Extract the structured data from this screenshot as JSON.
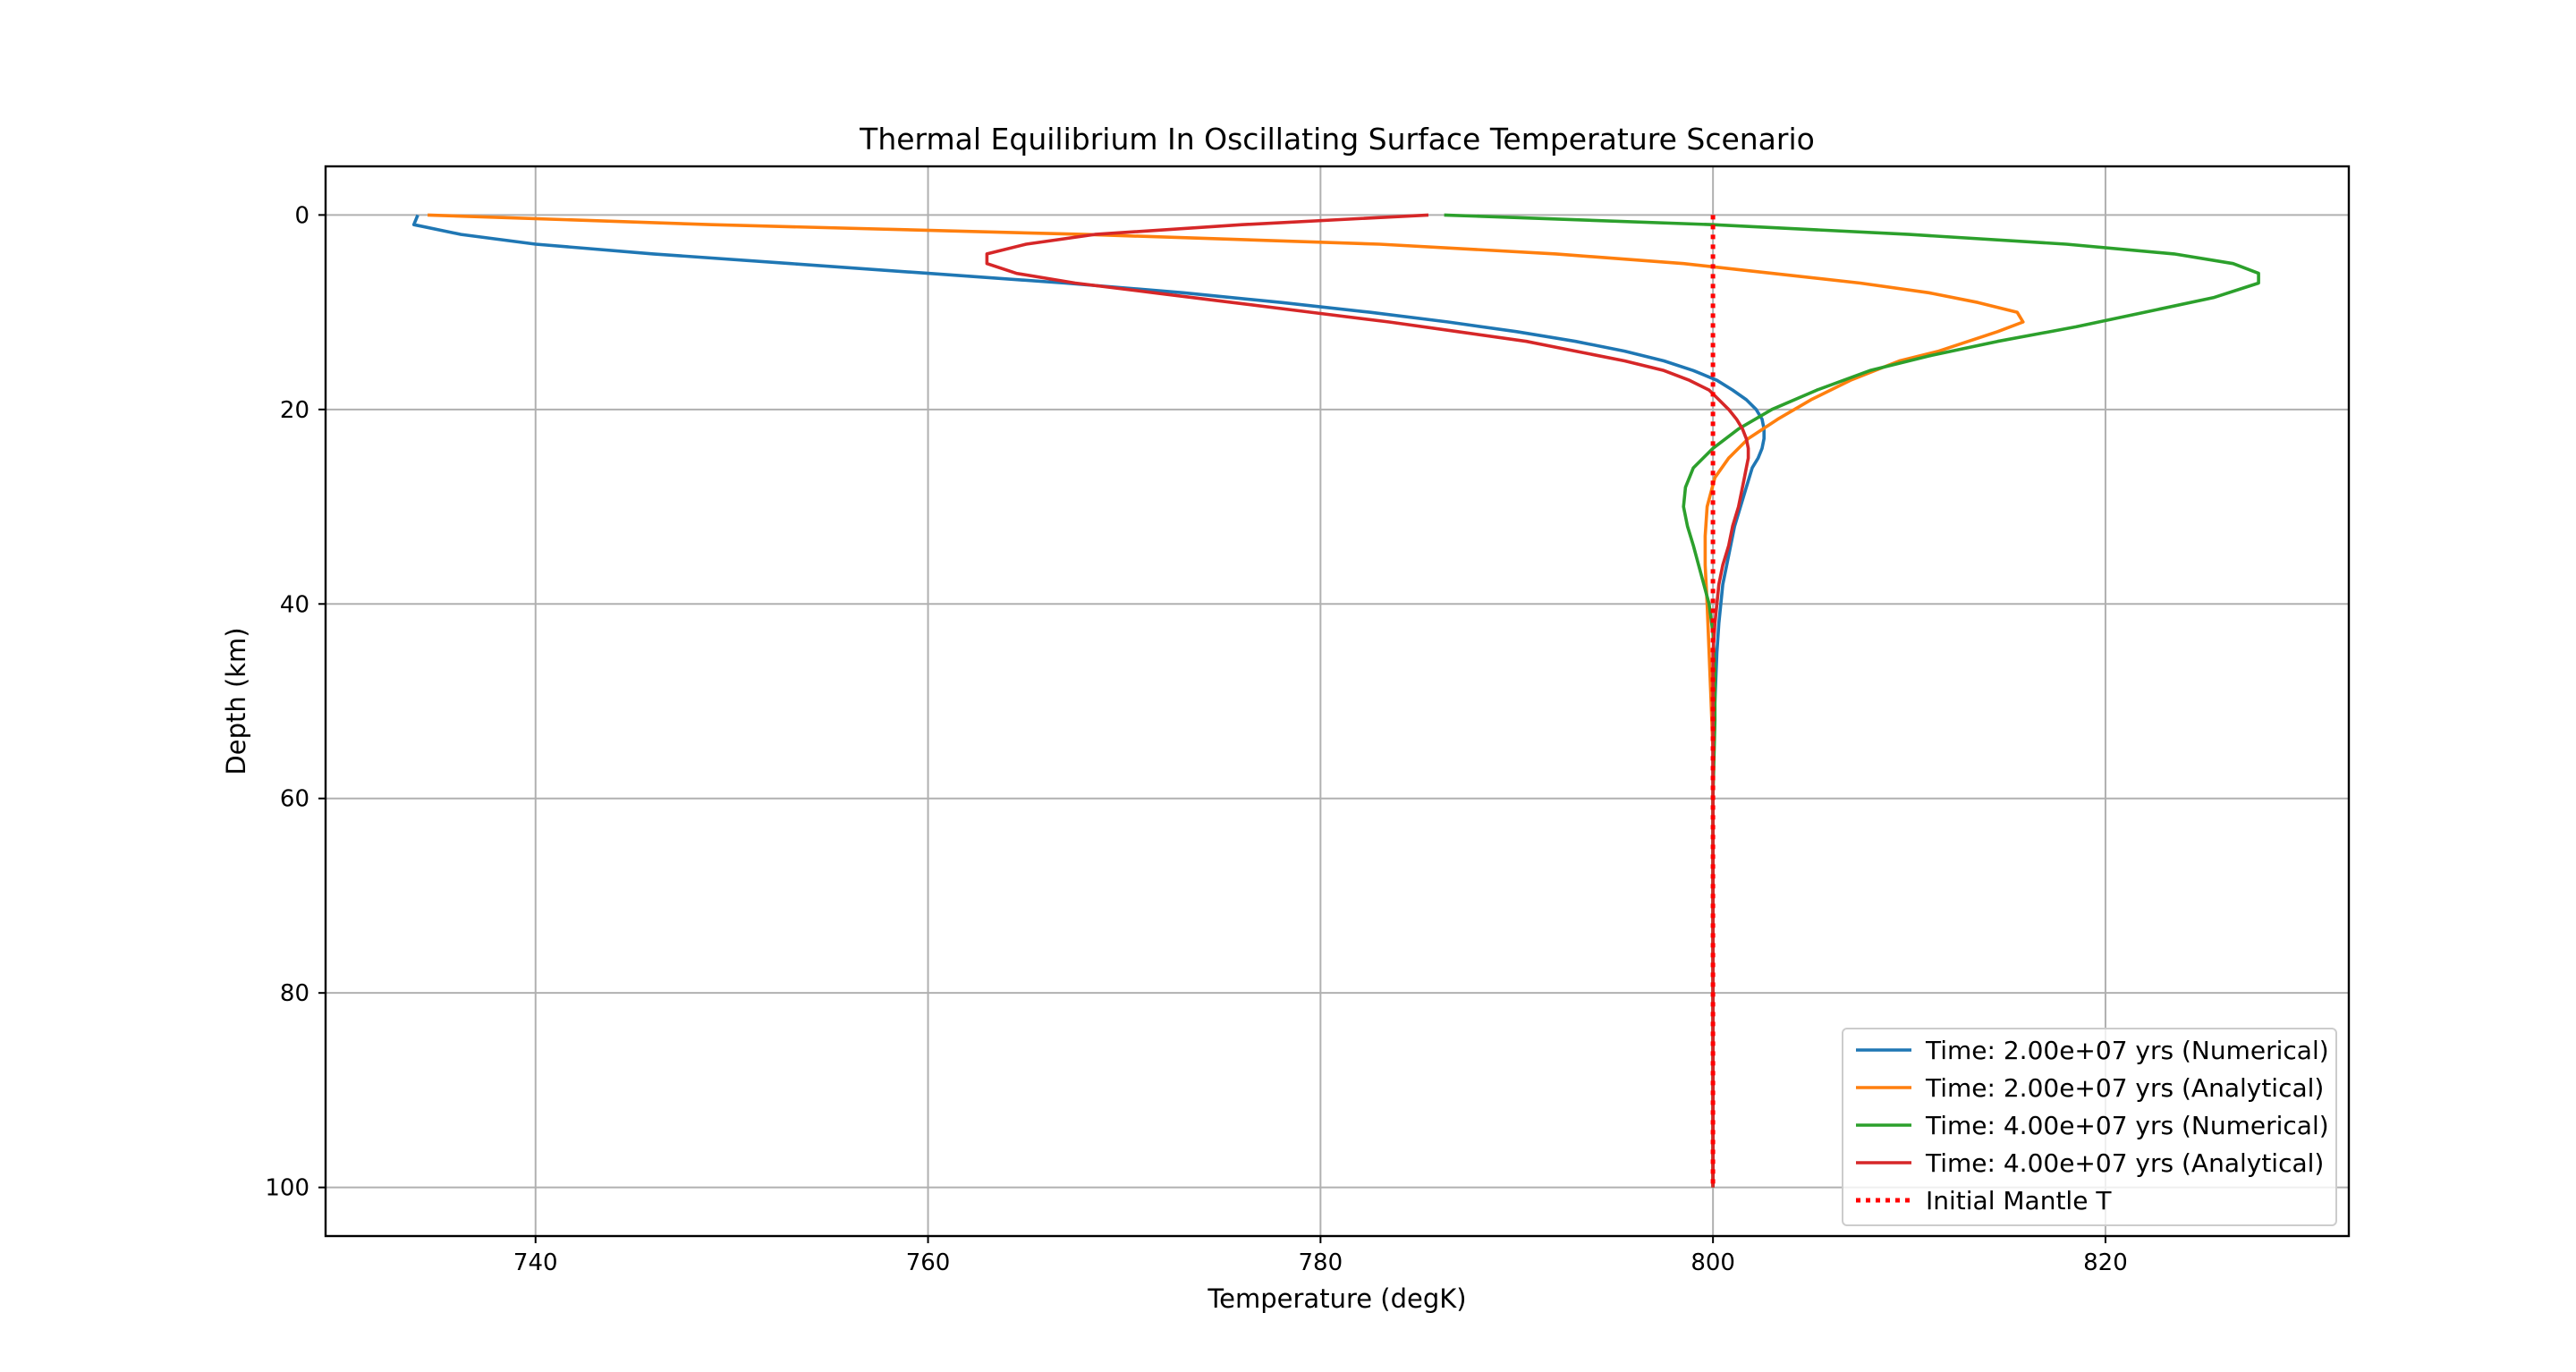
{
  "chart_data": {
    "type": "line",
    "title": "Thermal Equilibrium In Oscillating Surface Temperature Scenario",
    "xlabel": "Temperature (degK)",
    "ylabel": "Depth (km)",
    "xlim": [
      729.3,
      832.4
    ],
    "ylim": [
      105,
      -5
    ],
    "y_inverted": true,
    "xticks": [
      740,
      760,
      780,
      800,
      820
    ],
    "yticks": [
      0,
      20,
      40,
      60,
      80,
      100
    ],
    "grid": true,
    "legend_position": "lower right",
    "series": [
      {
        "name": "Time: 2.00e+07 yrs (Numerical)",
        "color": "#1f77b4",
        "style": "solid",
        "points": [
          [
            734.0,
            0
          ],
          [
            733.8,
            1
          ],
          [
            736.2,
            2
          ],
          [
            740.0,
            3
          ],
          [
            746.0,
            4
          ],
          [
            753.0,
            5
          ],
          [
            760.0,
            6
          ],
          [
            767.0,
            7
          ],
          [
            773.0,
            8
          ],
          [
            778.0,
            9
          ],
          [
            782.5,
            10
          ],
          [
            786.5,
            11
          ],
          [
            790.0,
            12
          ],
          [
            793.0,
            13
          ],
          [
            795.5,
            14
          ],
          [
            797.5,
            15
          ],
          [
            799.0,
            16
          ],
          [
            800.2,
            17
          ],
          [
            801.0,
            18
          ],
          [
            801.7,
            19
          ],
          [
            802.2,
            20
          ],
          [
            802.5,
            21
          ],
          [
            802.6,
            22
          ],
          [
            802.6,
            23
          ],
          [
            802.5,
            24
          ],
          [
            802.3,
            25
          ],
          [
            802.0,
            26
          ],
          [
            801.7,
            28
          ],
          [
            801.4,
            30
          ],
          [
            801.1,
            32
          ],
          [
            800.8,
            35
          ],
          [
            800.5,
            38
          ],
          [
            800.3,
            42
          ],
          [
            800.2,
            45
          ],
          [
            800.1,
            50
          ],
          [
            800.0,
            55
          ],
          [
            800.0,
            60
          ],
          [
            800.0,
            70
          ],
          [
            800.0,
            80
          ],
          [
            800.0,
            90
          ],
          [
            800.0,
            100
          ]
        ]
      },
      {
        "name": "Time: 2.00e+07 yrs (Analytical)",
        "color": "#ff7f0e",
        "style": "solid",
        "points": [
          [
            734.5,
            0
          ],
          [
            749.0,
            1
          ],
          [
            768.0,
            2
          ],
          [
            783.0,
            3
          ],
          [
            792.0,
            4
          ],
          [
            798.5,
            5
          ],
          [
            803.0,
            6
          ],
          [
            807.5,
            7
          ],
          [
            811.0,
            8
          ],
          [
            813.5,
            9
          ],
          [
            815.5,
            10
          ],
          [
            815.8,
            11
          ],
          [
            814.5,
            12
          ],
          [
            813.0,
            13
          ],
          [
            811.5,
            14
          ],
          [
            809.5,
            15
          ],
          [
            807.0,
            17
          ],
          [
            805.0,
            19
          ],
          [
            803.3,
            21
          ],
          [
            801.8,
            23
          ],
          [
            800.8,
            25
          ],
          [
            800.1,
            27
          ],
          [
            799.7,
            30
          ],
          [
            799.6,
            33
          ],
          [
            799.6,
            36
          ],
          [
            799.7,
            40
          ],
          [
            799.8,
            45
          ],
          [
            799.9,
            50
          ],
          [
            800.0,
            55
          ],
          [
            800.0,
            60
          ],
          [
            800.0,
            70
          ],
          [
            800.0,
            80
          ],
          [
            800.0,
            90
          ],
          [
            800.0,
            100
          ]
        ]
      },
      {
        "name": "Time: 4.00e+07 yrs (Numerical)",
        "color": "#2ca02c",
        "style": "solid",
        "points": [
          [
            786.3,
            0
          ],
          [
            800.0,
            1
          ],
          [
            810.0,
            2
          ],
          [
            818.0,
            3
          ],
          [
            823.5,
            4
          ],
          [
            826.5,
            5
          ],
          [
            827.8,
            6
          ],
          [
            827.8,
            7
          ],
          [
            825.5,
            8.5
          ],
          [
            822.0,
            10
          ],
          [
            818.5,
            11.5
          ],
          [
            814.5,
            13
          ],
          [
            811.0,
            14.5
          ],
          [
            808.0,
            16
          ],
          [
            805.3,
            18
          ],
          [
            803.0,
            20
          ],
          [
            801.3,
            22
          ],
          [
            800.0,
            24
          ],
          [
            799.0,
            26
          ],
          [
            798.6,
            28
          ],
          [
            798.5,
            30
          ],
          [
            798.7,
            32
          ],
          [
            799.0,
            34
          ],
          [
            799.4,
            37
          ],
          [
            799.8,
            40
          ],
          [
            800.0,
            43
          ],
          [
            800.1,
            47
          ],
          [
            800.1,
            52
          ],
          [
            800.0,
            60
          ],
          [
            800.0,
            70
          ],
          [
            800.0,
            80
          ],
          [
            800.0,
            90
          ],
          [
            800.0,
            100
          ]
        ]
      },
      {
        "name": "Time: 4.00e+07 yrs (Analytical)",
        "color": "#d62728",
        "style": "solid",
        "points": [
          [
            785.5,
            0
          ],
          [
            776.0,
            1
          ],
          [
            768.5,
            2
          ],
          [
            765.0,
            3
          ],
          [
            763.0,
            4
          ],
          [
            763.0,
            5
          ],
          [
            764.5,
            6
          ],
          [
            767.5,
            7
          ],
          [
            771.5,
            8
          ],
          [
            775.5,
            9
          ],
          [
            779.5,
            10
          ],
          [
            783.5,
            11
          ],
          [
            787.0,
            12
          ],
          [
            790.5,
            13
          ],
          [
            793.0,
            14
          ],
          [
            795.5,
            15
          ],
          [
            797.5,
            16
          ],
          [
            798.8,
            17
          ],
          [
            799.8,
            18
          ],
          [
            800.3,
            19
          ],
          [
            800.8,
            20
          ],
          [
            801.2,
            21
          ],
          [
            801.5,
            22
          ],
          [
            801.7,
            23
          ],
          [
            801.8,
            24
          ],
          [
            801.8,
            25
          ],
          [
            801.7,
            26
          ],
          [
            801.6,
            27
          ],
          [
            801.5,
            28
          ],
          [
            801.3,
            30
          ],
          [
            801.0,
            32
          ],
          [
            800.8,
            34
          ],
          [
            800.5,
            36
          ],
          [
            800.3,
            38
          ],
          [
            800.1,
            42
          ],
          [
            800.0,
            45
          ],
          [
            800.0,
            60
          ],
          [
            800.0,
            70
          ],
          [
            800.0,
            80
          ],
          [
            800.0,
            90
          ],
          [
            800.0,
            100
          ]
        ]
      },
      {
        "name": "Initial Mantle T",
        "color": "#ff0000",
        "style": "dotted",
        "points": [
          [
            800,
            0
          ],
          [
            800,
            100
          ]
        ]
      }
    ]
  }
}
